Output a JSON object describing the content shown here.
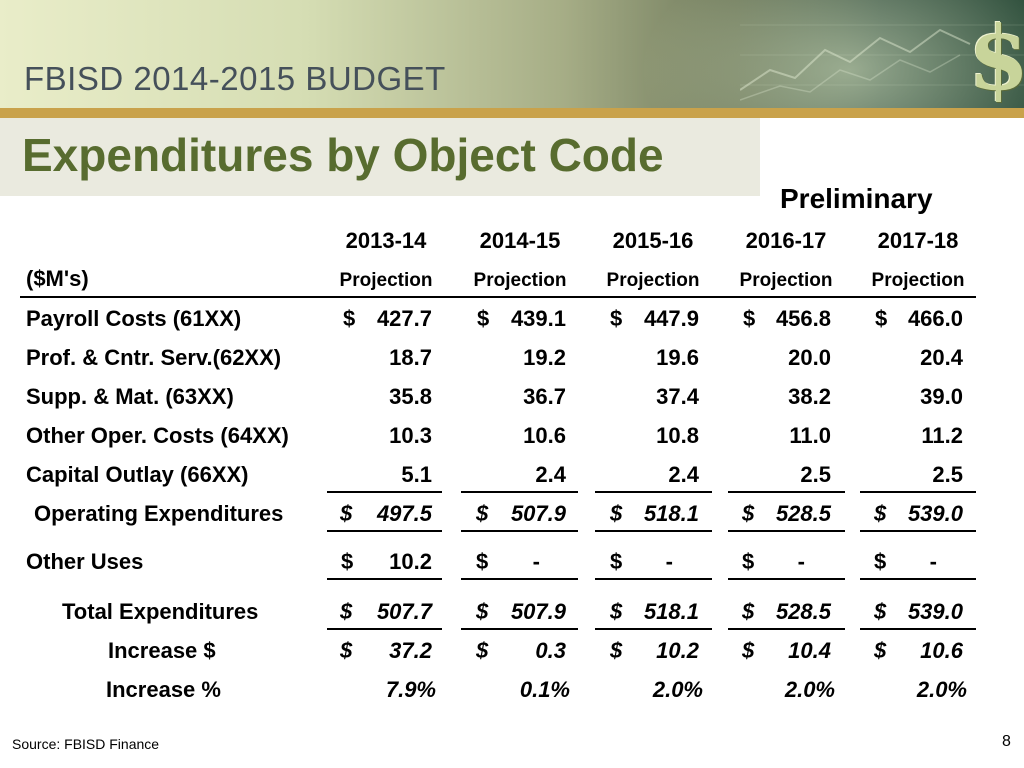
{
  "header": {
    "budget_title": "FBISD 2014-2015 BUDGET",
    "page_heading": "Expenditures by Object Code",
    "preliminary_label": "Preliminary"
  },
  "table": {
    "units_label": "($M's)",
    "years": [
      "2013-14",
      "2014-15",
      "2015-16",
      "2016-17",
      "2017-18"
    ],
    "projection_label": "Projection",
    "rows": [
      {
        "label": "Payroll Costs (61XX)",
        "values": [
          "427.7",
          "439.1",
          "447.9",
          "456.8",
          "466.0"
        ],
        "dollar": "$"
      },
      {
        "label": "Prof. & Cntr. Serv.(62XX)",
        "values": [
          "18.7",
          "19.2",
          "19.6",
          "20.0",
          "20.4"
        ]
      },
      {
        "label": "Supp. & Mat. (63XX)",
        "values": [
          "35.8",
          "36.7",
          "37.4",
          "38.2",
          "39.0"
        ]
      },
      {
        "label": "Other Oper. Costs (64XX)",
        "values": [
          "10.3",
          "10.6",
          "10.8",
          "11.0",
          "11.2"
        ]
      },
      {
        "label": "Capital Outlay (66XX)",
        "values": [
          "5.1",
          "2.4",
          "2.4",
          "2.5",
          "2.5"
        ]
      }
    ],
    "operating": {
      "label": "Operating Expenditures",
      "dollar": "$",
      "values": [
        "497.5",
        "507.9",
        "518.1",
        "528.5",
        "539.0"
      ]
    },
    "other_uses": {
      "label": "Other Uses",
      "dollar": "$",
      "values": [
        "10.2",
        "-",
        "-",
        "-",
        "-"
      ]
    },
    "total": {
      "label": "Total Expenditures",
      "dollar": "$",
      "values": [
        "507.7",
        "507.9",
        "518.1",
        "528.5",
        "539.0"
      ]
    },
    "increase_dollar": {
      "label": "Increase $",
      "dollar": "$",
      "values": [
        "37.2",
        "0.3",
        "10.2",
        "10.4",
        "10.6"
      ]
    },
    "increase_pct": {
      "label": "Increase %",
      "values": [
        "7.9%",
        "0.1%",
        "2.0%",
        "2.0%",
        "2.0%"
      ]
    }
  },
  "footer": {
    "source": "Source: FBISD Finance",
    "page_number": "8"
  }
}
